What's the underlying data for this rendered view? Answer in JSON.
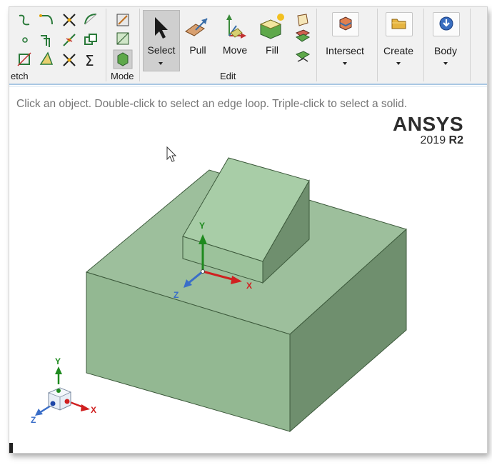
{
  "ribbon": {
    "groups": {
      "sketch_label": "etch",
      "mode_label": "Mode",
      "edit_label": "Edit"
    },
    "buttons": {
      "select": "Select",
      "pull": "Pull",
      "move": "Move",
      "fill": "Fill",
      "intersect": "Intersect",
      "create": "Create",
      "body": "Body"
    }
  },
  "viewport": {
    "hint": "Click an object. Double-click to select an edge loop. Triple-click to select a solid.",
    "logo_name": "ANSYS",
    "logo_version_prefix": "2019",
    "logo_version_suffix": "R2",
    "axis_x": "X",
    "axis_y": "Y",
    "axis_z": "Z",
    "triad_x": "X",
    "triad_y": "Y",
    "triad_z": "Z",
    "colors": {
      "solid_top": "#9dbf9c",
      "solid_front": "#8fb58e",
      "solid_side": "#6f8f6e",
      "wedge_top": "#a8cda7",
      "accent": "#4a86c8"
    }
  }
}
